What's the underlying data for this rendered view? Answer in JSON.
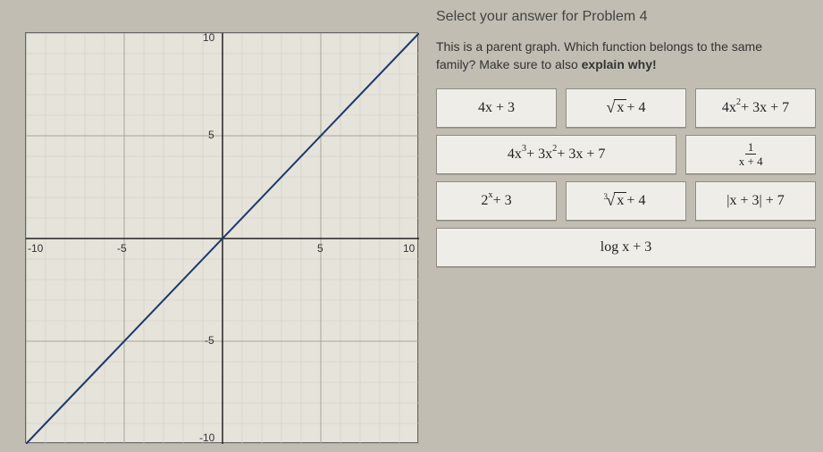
{
  "heading": "Select your answer for Problem 4",
  "prompt_line1": "This is a parent graph. Which function belongs to the same",
  "prompt_line2_a": "family? Make sure to also ",
  "prompt_line2_b": "explain why!",
  "graph": {
    "type": "line",
    "xlim": [
      -10,
      10
    ],
    "ylim": [
      -10,
      10
    ],
    "xtick_major_step": 5,
    "ytick_major_step": 5,
    "xtick_minor_step": 1,
    "ytick_minor_step": 1,
    "background_color": "#e6e3db",
    "major_grid_color": "#a8a49a",
    "minor_grid_color": "#cfccc3",
    "axis_color": "#222222",
    "line_color": "#1a3a6b",
    "line_width": 2,
    "line_points": [
      [
        -10,
        -10
      ],
      [
        10,
        10
      ]
    ],
    "axis_labels": {
      "x_neg": "-10",
      "x_mid_neg": "-5",
      "x_mid_pos": "5",
      "x_pos": "10",
      "y_pos": "10",
      "y_mid_pos": "5",
      "y_mid_neg": "-5",
      "y_neg": "-10"
    },
    "label_fontsize": 12
  },
  "answers": {
    "a1": "4x + 3",
    "a2_pre": "",
    "a2_rad": "x",
    "a2_post": " + 4",
    "a3_coef": "4x",
    "a3_exp": "2",
    "a3_rest": " + 3x + 7",
    "a4_t1": "4x",
    "a4_e1": "3",
    "a4_t2": " + 3x",
    "a4_e2": "2",
    "a4_rest": " + 3x + 7",
    "a5_num": "1",
    "a5_den": "x + 4",
    "a6_base": "2",
    "a6_exp": "x",
    "a6_rest": " + 3",
    "a7_idx": "3",
    "a7_rad": "x",
    "a7_post": " + 4",
    "a8": "|x + 3| + 7",
    "a9": "log x + 3"
  },
  "colors": {
    "page_bg": "#c2bdb2",
    "tile_bg": "#efede7",
    "tile_border": "#8e8b82"
  }
}
